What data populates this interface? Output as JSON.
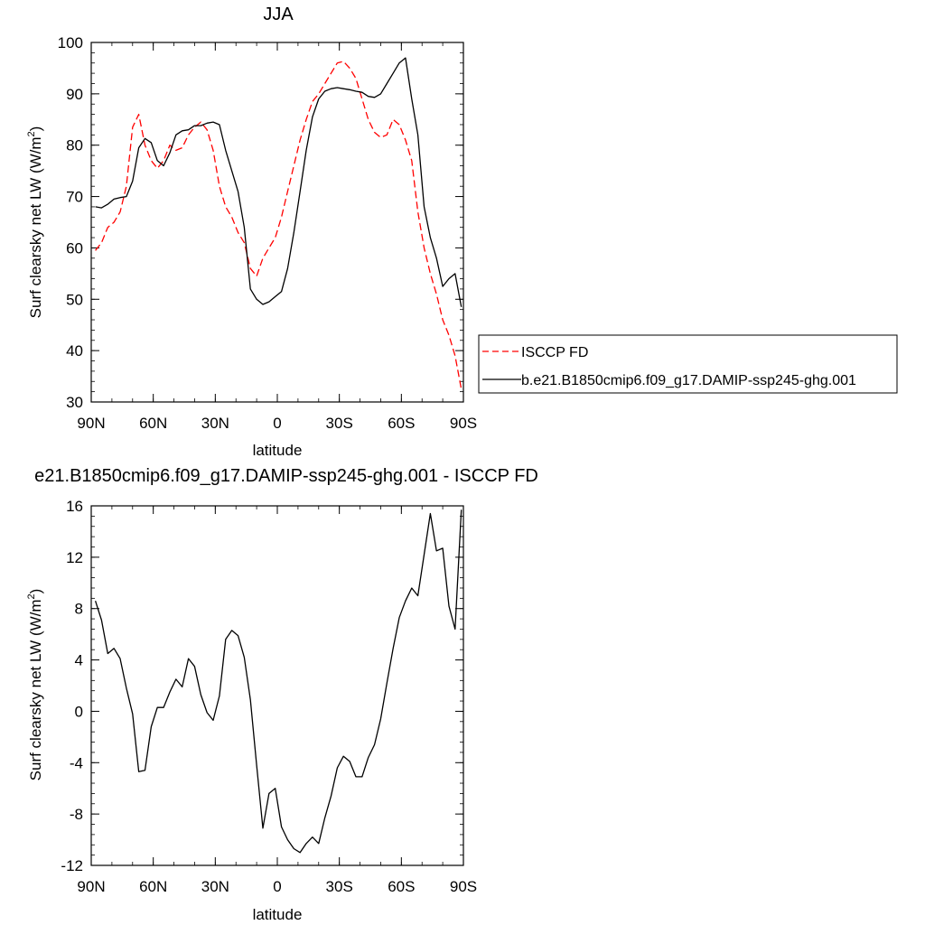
{
  "chart_data": [
    {
      "type": "line",
      "title": "JJA",
      "xlabel": "latitude",
      "ylabel": "Surf clearsky net LW (W/m²)",
      "ylabel_base": "Surf clearsky net LW (W/m",
      "ylabel_sup": "2",
      "ylabel_end": ")",
      "x_categories": [
        "90N",
        "60N",
        "30N",
        "0",
        "30S",
        "60S",
        "90S"
      ],
      "x_tick_values": [
        90,
        60,
        30,
        0,
        -30,
        -60,
        -90
      ],
      "xlim": [
        90,
        -90
      ],
      "ylim": [
        30,
        100
      ],
      "y_ticks": [
        "30",
        "40",
        "50",
        "60",
        "70",
        "80",
        "90",
        "100"
      ],
      "y_tick_values": [
        30,
        40,
        50,
        60,
        70,
        80,
        90,
        100
      ],
      "legend_position": "right",
      "series": [
        {
          "name": "ISCCP FD",
          "color": "#ff0000",
          "dash": "dashed",
          "x": [
            88,
            85,
            82,
            79,
            76,
            73,
            70,
            67,
            64,
            61,
            58,
            55,
            52,
            49,
            46,
            43,
            40,
            37,
            34,
            31,
            28,
            25,
            22,
            19,
            16,
            13,
            10,
            7,
            4,
            1,
            -2,
            -5,
            -8,
            -11,
            -14,
            -17,
            -20,
            -23,
            -26,
            -29,
            -32,
            -35,
            -38,
            -41,
            -44,
            -47,
            -50,
            -53,
            -56,
            -59,
            -62,
            -65,
            -68,
            -71,
            -74,
            -77,
            -80,
            -83,
            -86,
            -89
          ],
          "y": [
            59.5,
            61,
            64,
            65,
            67,
            72,
            83.5,
            86,
            80,
            77,
            75.5,
            77,
            80,
            79,
            79.5,
            82,
            83.5,
            84.5,
            83,
            79,
            72,
            68,
            66,
            63,
            61,
            56,
            54.5,
            58,
            60,
            62,
            66,
            71,
            76,
            81,
            85,
            88.5,
            90,
            92,
            94,
            96,
            96.3,
            95,
            93,
            89,
            85,
            82.5,
            81.5,
            82,
            85,
            84,
            81,
            77,
            67,
            60,
            55,
            51,
            46,
            43,
            39,
            32.5
          ]
        },
        {
          "name": "b.e21.B1850cmip6.f09_g17.DAMIP-ssp245-ghg.001",
          "color": "#000000",
          "dash": "solid",
          "x": [
            88,
            85,
            82,
            79,
            76,
            73,
            70,
            67,
            64,
            61,
            58,
            55,
            52,
            49,
            46,
            43,
            40,
            37,
            34,
            31,
            28,
            25,
            22,
            19,
            16,
            13,
            10,
            7,
            4,
            1,
            -2,
            -5,
            -8,
            -11,
            -14,
            -17,
            -20,
            -23,
            -26,
            -29,
            -32,
            -35,
            -38,
            -41,
            -44,
            -47,
            -50,
            -53,
            -56,
            -59,
            -62,
            -65,
            -68,
            -71,
            -74,
            -77,
            -80,
            -83,
            -86,
            -89
          ],
          "y": [
            68,
            67.8,
            68.5,
            69.5,
            69.8,
            70,
            73,
            79.5,
            81.3,
            80.5,
            77,
            76,
            78.5,
            82,
            82.8,
            83,
            83.8,
            83.8,
            84.3,
            84.5,
            84,
            79,
            75,
            71,
            64,
            52,
            50,
            49,
            49.5,
            50.5,
            51.5,
            56,
            63,
            71,
            79,
            85.5,
            89,
            90.5,
            91,
            91.2,
            91,
            90.8,
            90.5,
            90.3,
            89.5,
            89.3,
            90,
            92,
            94,
            96,
            97,
            89,
            82,
            68,
            62,
            58,
            52.5,
            54,
            55,
            48.5
          ]
        }
      ]
    },
    {
      "type": "line",
      "title": "e21.B1850cmip6.f09_g17.DAMIP-ssp245-ghg.001 - ISCCP FD",
      "xlabel": "latitude",
      "ylabel": "Surf clearsky net LW (W/m²)",
      "ylabel_base": "Surf clearsky net LW (W/m",
      "ylabel_sup": "2",
      "ylabel_end": ")",
      "x_categories": [
        "90N",
        "60N",
        "30N",
        "0",
        "30S",
        "60S",
        "90S"
      ],
      "x_tick_values": [
        90,
        60,
        30,
        0,
        -30,
        -60,
        -90
      ],
      "xlim": [
        90,
        -90
      ],
      "ylim": [
        -12,
        16
      ],
      "y_ticks": [
        "-12",
        "-8",
        "-4",
        "0",
        "4",
        "8",
        "12",
        "16"
      ],
      "y_tick_values": [
        -12,
        -8,
        -4,
        0,
        4,
        8,
        12,
        16
      ],
      "series": [
        {
          "color": "#000000",
          "x": [
            88,
            85,
            82,
            79,
            76,
            73,
            70,
            67,
            64,
            61,
            58,
            55,
            52,
            49,
            46,
            43,
            40,
            37,
            34,
            31,
            28,
            25,
            22,
            19,
            16,
            13,
            10,
            7,
            4,
            1,
            -2,
            -5,
            -8,
            -11,
            -14,
            -17,
            -20,
            -23,
            -26,
            -29,
            -32,
            -35,
            -38,
            -41,
            -44,
            -47,
            -50,
            -53,
            -56,
            -59,
            -62,
            -65,
            -68,
            -71,
            -74,
            -77,
            -80,
            -83,
            -86,
            -89
          ],
          "y": [
            8.6,
            7.1,
            4.5,
            4.9,
            4.1,
            1.8,
            -0.2,
            -4.7,
            -4.6,
            -1.2,
            0.3,
            0.3,
            1.5,
            2.5,
            1.9,
            4.1,
            3.5,
            1.3,
            -0.1,
            -0.7,
            1.2,
            5.6,
            6.3,
            5.9,
            4.2,
            0.9,
            -4.2,
            -9.1,
            -6.4,
            -6.0,
            -9.0,
            -10.0,
            -10.7,
            -11.0,
            -10.3,
            -9.8,
            -10.3,
            -8.3,
            -6.6,
            -4.4,
            -3.5,
            -3.9,
            -5.1,
            -5.1,
            -3.6,
            -2.6,
            -0.6,
            2.2,
            4.9,
            7.3,
            8.6,
            9.6,
            9.0,
            12.2,
            15.4,
            12.5,
            12.7,
            8.2,
            6.4,
            15.7
          ]
        }
      ]
    }
  ]
}
